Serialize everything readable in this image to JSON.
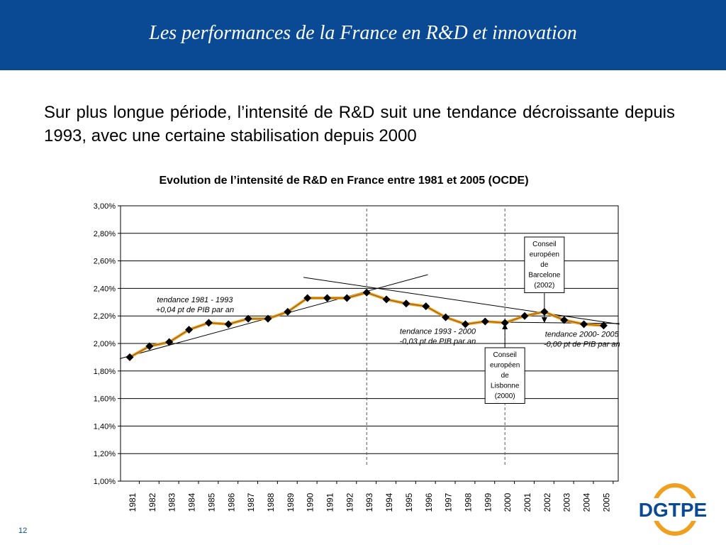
{
  "slide": {
    "title": "Les performances de la France en R&D et innovation",
    "intro": "Sur plus longue période, l’intensité de R&D suit une tendance décroissante depuis 1993, avec une certaine stabilisation depuis 2000",
    "page_number": "12",
    "logo_text": "DGTPE"
  },
  "colors": {
    "header_blue": "#0a4a95",
    "series_line": "#f0a020",
    "marker": "#000000",
    "logo_orange": "#f0a020"
  },
  "chart_data": {
    "type": "line",
    "title": "Evolution de l’intensité de R&D en France entre 1981 et 2005 (OCDE)",
    "xlabel": "",
    "ylabel": "",
    "ylim": [
      1.0,
      3.0
    ],
    "grid": true,
    "categories": [
      "1981",
      "1982",
      "1983",
      "1984",
      "1985",
      "1986",
      "1987",
      "1988",
      "1989",
      "1990",
      "1991",
      "1992",
      "1993",
      "1994",
      "1995",
      "1996",
      "1997",
      "1998",
      "1999",
      "2000",
      "2001",
      "2002",
      "2003",
      "2004",
      "2005"
    ],
    "series": [
      {
        "values": [
          1.9,
          1.98,
          2.01,
          2.1,
          2.15,
          2.14,
          2.18,
          2.18,
          2.23,
          2.33,
          2.33,
          2.33,
          2.37,
          2.32,
          2.29,
          2.27,
          2.19,
          2.14,
          2.16,
          2.15,
          2.2,
          2.23,
          2.17,
          2.14,
          2.13
        ]
      }
    ],
    "y_ticks": [
      {
        "v": 1.0,
        "label": "1,00%"
      },
      {
        "v": 1.2,
        "label": "1,20%"
      },
      {
        "v": 1.4,
        "label": "1,40%"
      },
      {
        "v": 1.6,
        "label": "1,60%"
      },
      {
        "v": 1.8,
        "label": "1,80%"
      },
      {
        "v": 2.0,
        "label": "2,00%"
      },
      {
        "v": 2.2,
        "label": "2,20%"
      },
      {
        "v": 2.4,
        "label": "2,40%"
      },
      {
        "v": 2.6,
        "label": "2,60%"
      },
      {
        "v": 2.8,
        "label": "2,80%"
      },
      {
        "v": 3.0,
        "label": "3,00%"
      }
    ],
    "vlines": [
      1993,
      2000
    ],
    "trend_lines": [
      {
        "x1": 1980.5,
        "y1": 1.89,
        "x2": 1996.1,
        "y2": 2.5
      },
      {
        "x1": 1989.8,
        "y1": 2.48,
        "x2": 2005.8,
        "y2": 2.14
      },
      {
        "x1": 1999.5,
        "y1": 2.155,
        "x2": 2005.8,
        "y2": 2.145
      }
    ],
    "annotations": [
      {
        "lines": [
          "tendance 1981 - 1993",
          "+0,04 pt de PIB par an"
        ],
        "x": 1984.3,
        "y": 2.3
      },
      {
        "lines": [
          "tendance 1993 - 2000",
          "-0,03 pt de PIB par an"
        ],
        "x": 1996.6,
        "y": 2.07
      },
      {
        "lines": [
          "tendance 2000- 2005",
          "-0,00 pt de PIB par an"
        ],
        "x": 2003.9,
        "y": 2.05
      }
    ],
    "callouts": [
      {
        "id": "barcelone",
        "lines": [
          "Conseil",
          "européen",
          "de",
          "Barcelone",
          "(2002)"
        ],
        "x": 2002,
        "arrow": "down"
      },
      {
        "id": "lisbonne",
        "lines": [
          "Conseil",
          "européen",
          "de",
          "Lisbonne",
          "(2000)"
        ],
        "x": 2000,
        "arrow": "up"
      }
    ]
  }
}
